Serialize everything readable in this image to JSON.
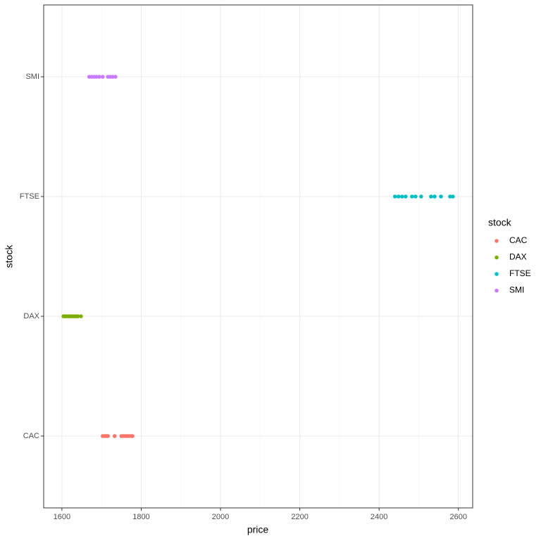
{
  "chart_data": {
    "type": "strip",
    "xlabel": "price",
    "ylabel": "stock",
    "categories": [
      "CAC",
      "DAX",
      "FTSE",
      "SMI"
    ],
    "xlim": [
      1554,
      2636
    ],
    "xticks": [
      1600,
      1800,
      2000,
      2200,
      2400,
      2600
    ],
    "grid": true,
    "legend_title": "stock",
    "legend": "right",
    "series": [
      {
        "name": "CAC",
        "color": "#F8766D",
        "category": 0,
        "values": [
          1703,
          1708,
          1712,
          1716,
          1733,
          1750,
          1755,
          1760,
          1765,
          1770,
          1775,
          1778
        ]
      },
      {
        "name": "DAX",
        "color": "#7CAE00",
        "category": 1,
        "values": [
          1604,
          1608,
          1612,
          1616,
          1620,
          1624,
          1628,
          1632,
          1636,
          1640,
          1648
        ]
      },
      {
        "name": "FTSE",
        "color": "#00BFC4",
        "category": 2,
        "values": [
          2440,
          2449,
          2458,
          2467,
          2483,
          2492,
          2506,
          2531,
          2540,
          2556,
          2579,
          2586
        ]
      },
      {
        "name": "SMI",
        "color": "#C77CFF",
        "category": 3,
        "values": [
          1669,
          1675,
          1681,
          1687,
          1694,
          1703,
          1716,
          1722,
          1728,
          1735
        ]
      }
    ]
  }
}
